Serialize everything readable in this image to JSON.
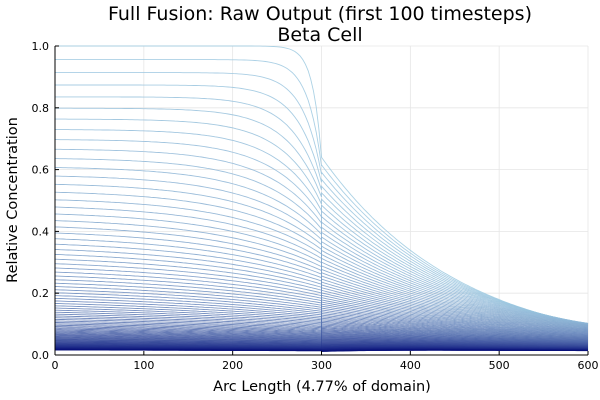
{
  "chart_data": {
    "type": "line",
    "title": "Full Fusion: Raw Output (first 100 timesteps)",
    "subtitle": "Beta Cell",
    "xlabel": "Arc Length (4.77% of domain)",
    "ylabel": "Relative Concentration",
    "xlim": [
      0,
      600
    ],
    "ylim": [
      0,
      1
    ],
    "x_ticks": [
      0,
      100,
      200,
      300,
      400,
      500,
      600
    ],
    "y_ticks": [
      0.0,
      0.2,
      0.4,
      0.6,
      0.8,
      1.0
    ],
    "x_tick_labels": [
      "0",
      "100",
      "200",
      "300",
      "400",
      "500",
      "600"
    ],
    "y_tick_labels": [
      "0.0",
      "0.2",
      "0.4",
      "0.6",
      "0.8",
      "1.0"
    ],
    "grid": true,
    "legend": "none",
    "series_count": 100,
    "junction_x": 300,
    "junction_value_curve_1": 0.64,
    "right_end_value_curve_1": 0.095,
    "color_gradient": [
      "#9ecae1",
      "#08107a"
    ],
    "series_description": "Each timestep t yields one curve: a plateau on 0-300 decaying from 1.0 toward ~0.01, a drop at x=300, then an exponential decay on 300-600."
  }
}
